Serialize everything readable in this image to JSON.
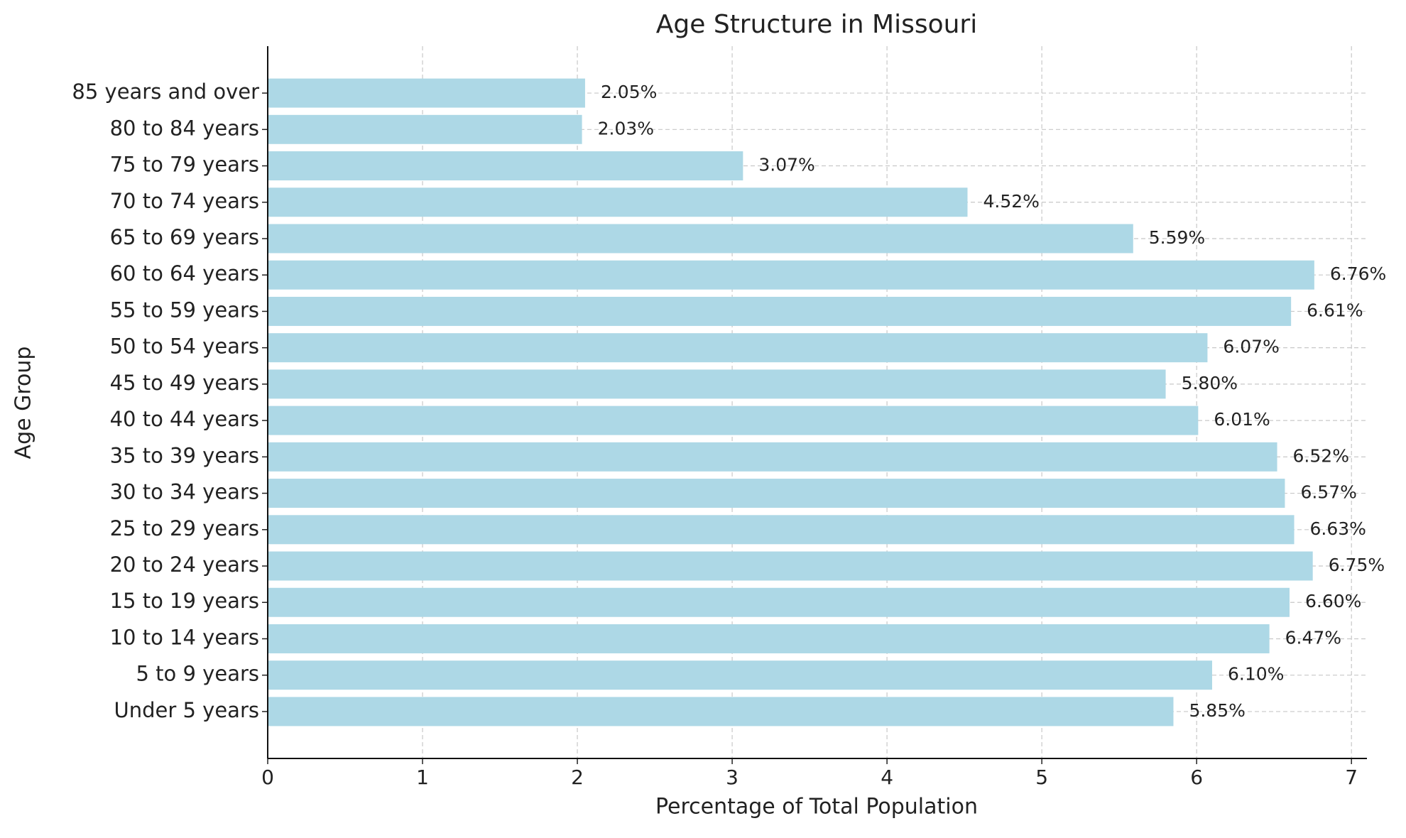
{
  "chart_data": {
    "type": "bar",
    "orientation": "horizontal",
    "title": "Age Structure in Missouri",
    "x_label": "Percentage of Total Population",
    "y_label": "Age Group",
    "categories": [
      "Under 5 years",
      "5 to 9 years",
      "10 to 14 years",
      "15 to 19 years",
      "20 to 24 years",
      "25 to 29 years",
      "30 to 34 years",
      "35 to 39 years",
      "40 to 44 years",
      "45 to 49 years",
      "50 to 54 years",
      "55 to 59 years",
      "60 to 64 years",
      "65 to 69 years",
      "70 to 74 years",
      "75 to 79 years",
      "80 to 84 years",
      "85 years and over"
    ],
    "values": [
      5.85,
      6.1,
      6.47,
      6.6,
      6.75,
      6.63,
      6.57,
      6.52,
      6.01,
      5.8,
      6.07,
      6.61,
      6.76,
      5.59,
      4.52,
      3.07,
      2.03,
      2.05
    ],
    "value_labels": [
      "5.85%",
      "6.10%",
      "6.47%",
      "6.60%",
      "6.75%",
      "6.63%",
      "6.57%",
      "6.52%",
      "6.01%",
      "5.80%",
      "6.07%",
      "6.61%",
      "6.76%",
      "5.59%",
      "4.52%",
      "3.07%",
      "2.03%",
      "2.05%"
    ],
    "color": "#add8e6",
    "xlim": [
      0,
      7.1
    ],
    "xticks": [
      0,
      1,
      2,
      3,
      4,
      5,
      6,
      7
    ],
    "grid": true
  }
}
